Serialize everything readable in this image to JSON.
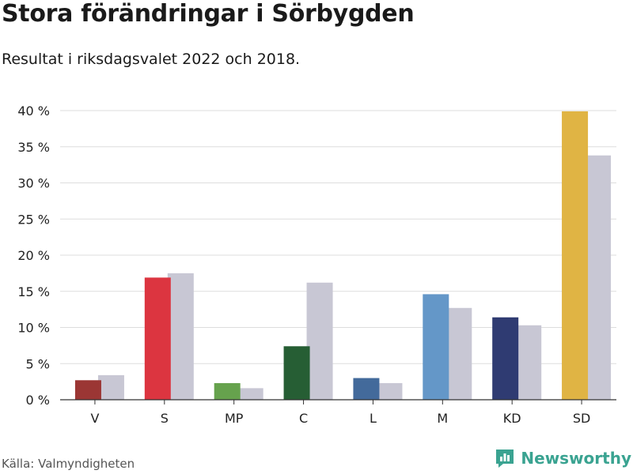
{
  "title": "Stora förändringar i Sörbygden",
  "subtitle": "Resultat i riksdagsvalet 2022 och 2018.",
  "source": "Källa: Valmyndigheten",
  "brand": "Newsworthy",
  "colors": {
    "grid": "#dddddd",
    "axis": "#333333",
    "series_2018": "#c8c7d4",
    "brand": "#3aa391"
  },
  "chart_data": {
    "type": "bar",
    "categories": [
      "V",
      "S",
      "MP",
      "C",
      "L",
      "M",
      "KD",
      "SD"
    ],
    "series": [
      {
        "values": [
          2.7,
          16.9,
          2.3,
          7.4,
          3.0,
          14.6,
          11.4,
          39.9
        ],
        "colors": [
          "#9b3634",
          "#dc3540",
          "#66a24d",
          "#265e34",
          "#436a9b",
          "#6497c8",
          "#2f3b72",
          "#e0b444"
        ]
      },
      {
        "values": [
          3.4,
          17.5,
          1.6,
          16.2,
          2.3,
          12.7,
          10.3,
          33.8
        ]
      }
    ],
    "ylim": [
      0,
      40
    ],
    "yticks": [
      0,
      5,
      10,
      15,
      20,
      25,
      30,
      35,
      40
    ],
    "ytick_labels": [
      "0 %",
      "5 %",
      "10 %",
      "15 %",
      "20 %",
      "25 %",
      "30 %",
      "35 %",
      "40 %"
    ],
    "grid": true,
    "legend": "none"
  }
}
